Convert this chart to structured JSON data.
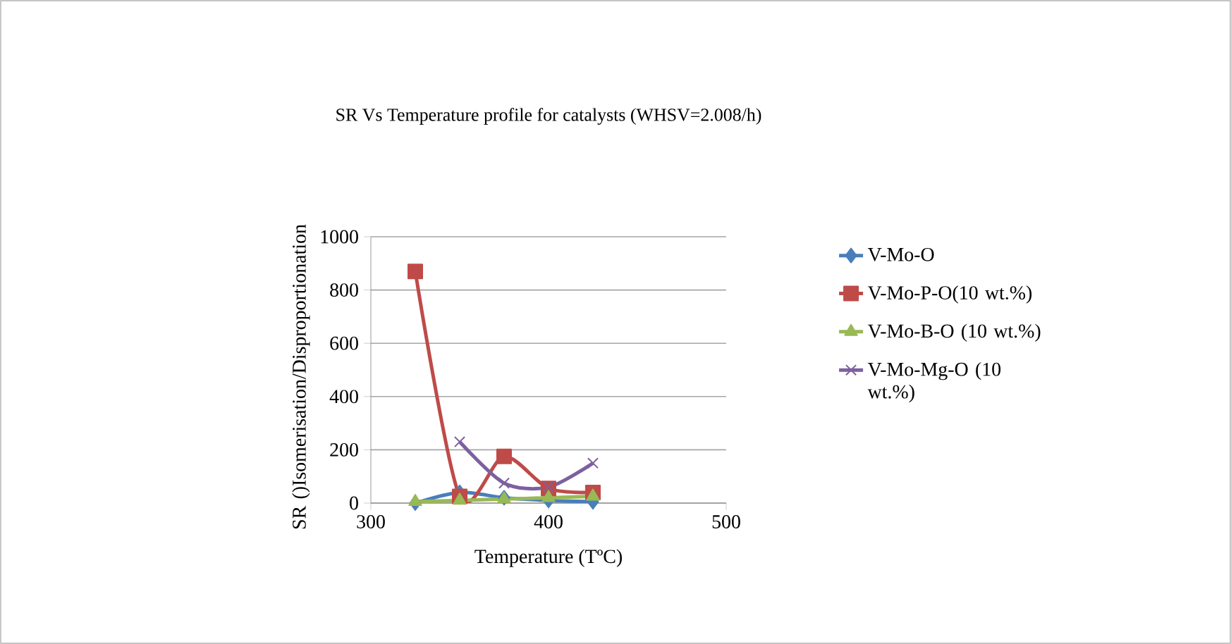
{
  "chart_data": {
    "type": "line",
    "title": "SR Vs Temperature profile for catalysts (WHSV=2.008/h)",
    "xlabel": "Temperature (TºC)",
    "ylabel": "SR ()Isomerisation/Disproportionation",
    "x": [
      325,
      350,
      375,
      400,
      425
    ],
    "series": [
      {
        "name": "V-Mo-O",
        "color": "#4a7ebb",
        "marker": "diamond",
        "values": [
          0,
          40,
          20,
          10,
          5
        ]
      },
      {
        "name": "V-Mo-P-O(10 wt.%)",
        "color": "#be4b48",
        "marker": "square",
        "values": [
          870,
          25,
          175,
          55,
          40
        ]
      },
      {
        "name": "V-Mo-B-O (10 wt.%)",
        "color": "#98b954",
        "marker": "triangle",
        "values": [
          5,
          10,
          15,
          20,
          25
        ]
      },
      {
        "name": "V-Mo-Mg-O (10 wt.%)",
        "color": "#7d60a0",
        "marker": "cross",
        "values": [
          null,
          230,
          75,
          60,
          150
        ]
      }
    ],
    "xlim": [
      300,
      500
    ],
    "xticks": [
      300,
      400,
      500
    ],
    "ylim": [
      0,
      1000
    ],
    "yticks": [
      0,
      200,
      400,
      600,
      800,
      1000
    ],
    "grid": "y",
    "legend": "right"
  }
}
